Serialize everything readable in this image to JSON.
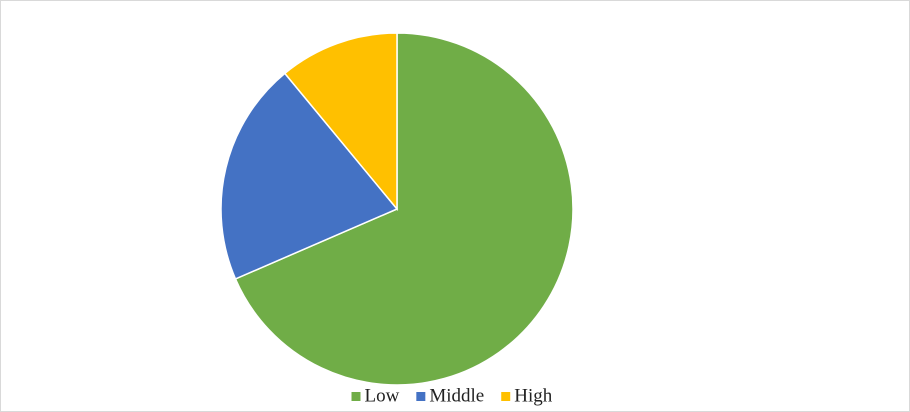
{
  "chart_data": {
    "type": "pie",
    "categories": [
      "Low",
      "Middle",
      "High"
    ],
    "values": [
      68.5,
      20.5,
      11
    ],
    "colors": [
      "#70ad47",
      "#4472c4",
      "#ffc000"
    ],
    "legend": "bottom"
  }
}
